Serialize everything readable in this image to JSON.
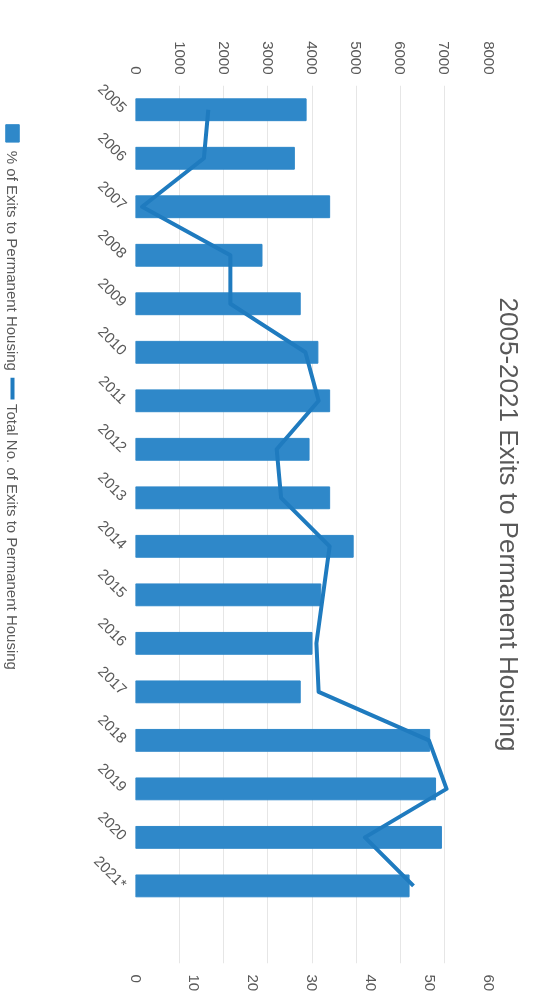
{
  "chart_data": {
    "type": "bar",
    "orientation": "horizontal",
    "title": "2005-2021 Exits to Permanent Housing",
    "categories": [
      "2005",
      "2006",
      "2007",
      "2008",
      "2009",
      "2010",
      "2011",
      "2012",
      "2013",
      "2014",
      "2015",
      "2016",
      "2017",
      "2018",
      "2019",
      "2020",
      "2021*"
    ],
    "series": [
      {
        "name": "% of Exits to Permanent Housing",
        "color": "#2f88c9",
        "values": [
          29,
          27,
          33,
          21.5,
          28,
          31,
          33,
          29.5,
          33,
          37,
          31.5,
          30,
          28,
          50,
          51,
          52,
          46.5
        ]
      },
      {
        "name": "Total No. of Exits to Permanent Housing",
        "type": "line",
        "axis": "x2",
        "color": "#1f7bbf",
        "values": [
          1650,
          1550,
          150,
          2150,
          2150,
          3850,
          4150,
          3200,
          3300,
          4400,
          4250,
          4100,
          4150,
          6650,
          7050,
          5200,
          6300
        ]
      }
    ],
    "xlim": [
      0,
      60
    ],
    "xticks": [
      0,
      10,
      20,
      30,
      40,
      50,
      60
    ],
    "x2lim": [
      0,
      8000
    ],
    "x2ticks": [
      0,
      1000,
      2000,
      3000,
      4000,
      5000,
      6000,
      7000,
      8000
    ],
    "grid": "x2",
    "legend": "left",
    "line_style": "solid"
  }
}
